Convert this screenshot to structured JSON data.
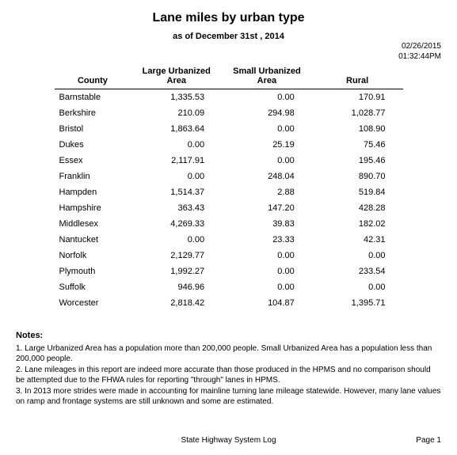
{
  "report": {
    "title": "Lane miles by urban type",
    "subtitle": "as of December 31st , 2014",
    "timestamp_date": "02/26/2015",
    "timestamp_time": "01:32:44PM"
  },
  "table": {
    "headers": {
      "county": "County",
      "large": "Large Urbanized Area",
      "small": "Small Urbanized Area",
      "rural": "Rural"
    },
    "rows": [
      {
        "county": "Barnstable",
        "large": "1,335.53",
        "small": "0.00",
        "rural": "170.91"
      },
      {
        "county": "Berkshire",
        "large": "210.09",
        "small": "294.98",
        "rural": "1,028.77"
      },
      {
        "county": "Bristol",
        "large": "1,863.64",
        "small": "0.00",
        "rural": "108.90"
      },
      {
        "county": "Dukes",
        "large": "0.00",
        "small": "25.19",
        "rural": "75.46"
      },
      {
        "county": "Essex",
        "large": "2,117.91",
        "small": "0.00",
        "rural": "195.46"
      },
      {
        "county": "Franklin",
        "large": "0.00",
        "small": "248.04",
        "rural": "890.70"
      },
      {
        "county": "Hampden",
        "large": "1,514.37",
        "small": "2.88",
        "rural": "519.84"
      },
      {
        "county": "Hampshire",
        "large": "363.43",
        "small": "147.20",
        "rural": "428.28"
      },
      {
        "county": "Middlesex",
        "large": "4,269.33",
        "small": "39.83",
        "rural": "182.02"
      },
      {
        "county": "Nantucket",
        "large": "0.00",
        "small": "23.33",
        "rural": "42.31"
      },
      {
        "county": "Norfolk",
        "large": "2,129.77",
        "small": "0.00",
        "rural": "0.00"
      },
      {
        "county": "Plymouth",
        "large": "1,992.27",
        "small": "0.00",
        "rural": "233.54"
      },
      {
        "county": "Suffolk",
        "large": "946.96",
        "small": "0.00",
        "rural": "0.00"
      },
      {
        "county": "Worcester",
        "large": "2,818.42",
        "small": "104.87",
        "rural": "1,395.71"
      }
    ]
  },
  "notes": {
    "heading": "Notes:",
    "items": [
      "1. Large Urbanized Area has a population more than 200,000 people. Small Urbanized Area has a population less than 200,000 people.",
      "2. Lane mileages in this report are indeed more accurate than those produced in the HPMS and no comparison should be attempted due to the FHWA rules for reporting \"through\" lanes in HPMS.",
      "3. In 2013 more strides were made in accounting for mainline turning lane mileage statewide. However, many lane values on ramp and frontage systems are still unknown and some are estimated."
    ]
  },
  "footer": {
    "center": "State Highway System Log",
    "right": "Page 1"
  },
  "style": {
    "background_color": "#ffffff",
    "text_color": "#000000",
    "title_fontsize_pt": 16,
    "subtitle_fontsize_pt": 11,
    "body_fontsize_pt": 11,
    "notes_fontsize_pt": 10,
    "footer_fontsize_pt": 10,
    "font_family": "Arial",
    "header_border_color": "#000000",
    "column_align": {
      "county": "left",
      "large": "right",
      "small": "right",
      "rural": "right"
    }
  }
}
